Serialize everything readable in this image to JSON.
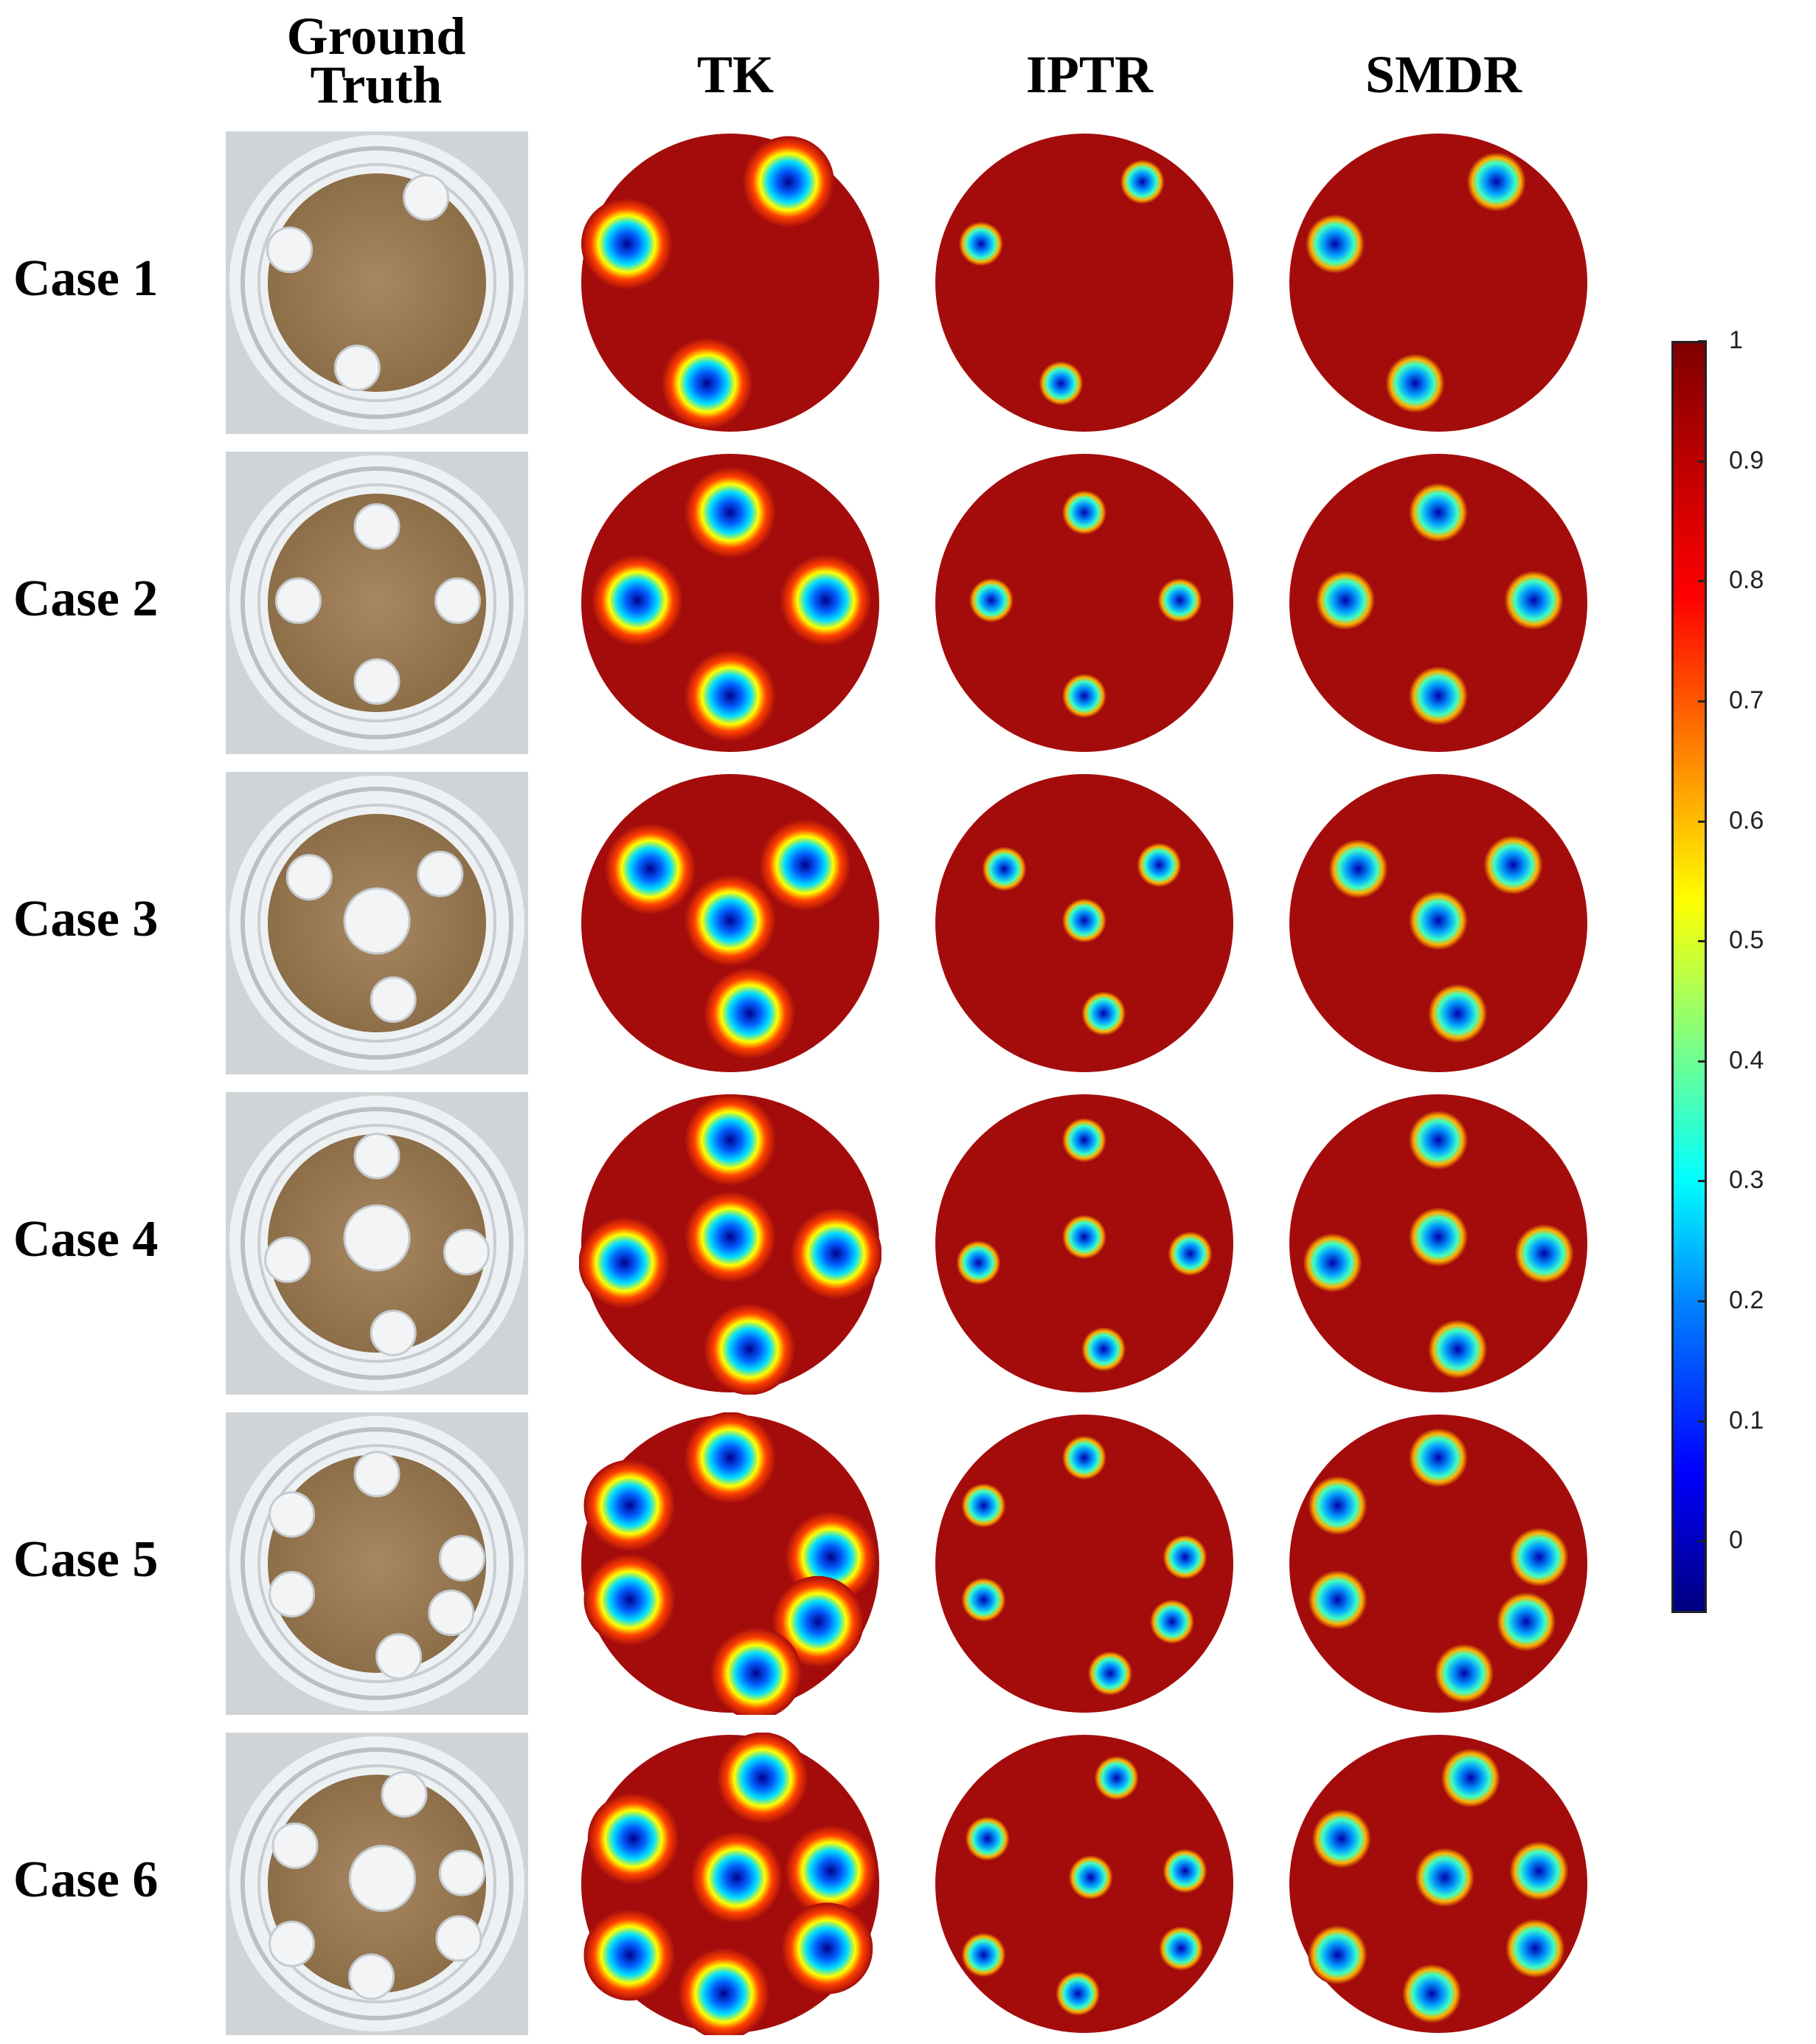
{
  "headers": {
    "ground_truth": [
      "Ground",
      "Truth"
    ],
    "tk": "TK",
    "iptr": "IPTR",
    "smdr": "SMDR"
  },
  "cases": [
    {
      "label": "Case 1"
    },
    {
      "label": "Case 2"
    },
    {
      "label": "Case 3"
    },
    {
      "label": "Case 4"
    },
    {
      "label": "Case 5"
    },
    {
      "label": "Case 6"
    }
  ],
  "colorbar": {
    "min": -0.06,
    "max": 1.0,
    "ticks": [
      "1",
      "0.9",
      "0.8",
      "0.7",
      "0.6",
      "0.5",
      "0.4",
      "0.3",
      "0.2",
      "0.1",
      "0"
    ],
    "tick_values": [
      1.0,
      0.9,
      0.8,
      0.7,
      0.6,
      0.5,
      0.4,
      0.3,
      0.2,
      0.1,
      0.0
    ],
    "colormap": "jet"
  },
  "colors": {
    "background_map": "#a40c0c",
    "anomaly_core": "#0000b0",
    "tank_wall": "#dfe3e6",
    "sand": "#a7865c"
  }
}
